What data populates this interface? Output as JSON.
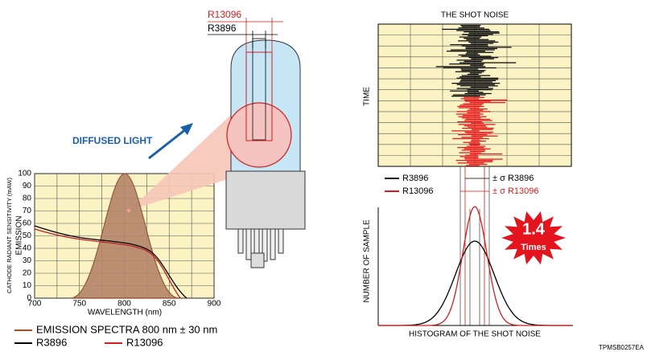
{
  "tube_labels": {
    "large": "R13096",
    "small": "R3896"
  },
  "diffused_light": "DIFFUSED LIGHT",
  "emission_chart": {
    "y_label_1": "CATHODE RADIANT SENSITIVITY (mAW)",
    "y_label_2": "EMISSION",
    "x_label": "WAVELENGTH (nm)",
    "yticks": [
      0,
      10,
      20,
      30,
      40,
      50,
      60,
      70,
      80,
      90,
      100
    ],
    "xticks": [
      700,
      750,
      800,
      850,
      900
    ]
  },
  "legend": {
    "emission": "EMISSION SPECTRA 800 nm ± 30 nm",
    "r3896": "R3896",
    "r13096": "R13096"
  },
  "shot_noise": {
    "title": "THE SHOT NOISE",
    "time_label": "TIME",
    "legend_r3896": "R3896",
    "legend_r13096": "R13096",
    "sigma_r3896": "± σ R3896",
    "sigma_r13096": "± σ R13096",
    "y_label": "NUMBER OF SAMPLE",
    "x_label": "HISTOGRAM OF THE SHOT NOISE",
    "badge_number": "1.4",
    "badge_text": "Times"
  },
  "figure_id": "TPMSB0257EA"
}
